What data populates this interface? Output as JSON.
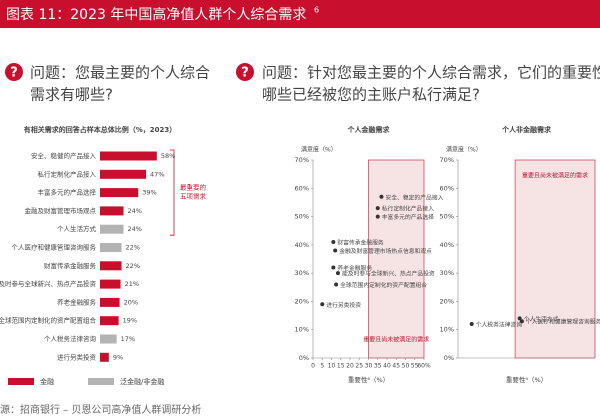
{
  "header": {
    "title": "图表 11：2023 年中国高净值人群个人综合需求",
    "superscript": "6"
  },
  "question_left": [
    "问题：您最主要的个人综合",
    "需求有哪些?"
  ],
  "question_right": [
    "问题：针对您最主要的个人综合需求，它们的重要性如何",
    "哪些已经被您的主账户私行满足?"
  ],
  "chart_data": [
    {
      "type": "bar",
      "title": "有相关需求的回答占样本总体比例（%，2023）",
      "categories": [
        "安全、稳健的产品接入",
        "私行定制化产品接入",
        "丰富多元的产品选择",
        "金融及财富管理市场观点",
        "个人生活方式",
        "个人医疗和健康管理咨询服务",
        "财富传承金融服务",
        "能及时参与全球新兴、热点产品投资",
        "养老金融服务",
        "全球范围内定制化的资产配置组合",
        "个人税务法律咨询",
        "进行另类投资"
      ],
      "values": [
        58,
        47,
        39,
        24,
        24,
        22,
        22,
        21,
        20,
        19,
        17,
        9
      ],
      "value_labels": [
        "58%",
        "47%",
        "39%",
        "24%",
        "24%",
        "22%",
        "22%",
        "21%",
        "20%",
        "19%",
        "17%",
        "9%"
      ],
      "colors": [
        "#c8102e",
        "#c8102e",
        "#c8102e",
        "#c8102e",
        "#b3b3b3",
        "#b3b3b3",
        "#c8102e",
        "#c8102e",
        "#c8102e",
        "#c8102e",
        "#b3b3b3",
        "#c8102e"
      ],
      "legend": [
        {
          "name": "金融",
          "color": "#c8102e"
        },
        {
          "name": "泛金融/非金融",
          "color": "#b3b3b3"
        }
      ],
      "annotation": [
        "最重要的",
        "五项需求"
      ]
    },
    {
      "type": "scatter",
      "title": "个人金融需求",
      "ylabel": "满意度（%）",
      "xlabel": "重要性⁶（%）",
      "x": [
        37,
        35,
        35,
        11,
        12,
        11,
        13.5,
        12.5,
        5
      ],
      "values": [
        57,
        53,
        50,
        41,
        38,
        32,
        30,
        26,
        19
      ],
      "labels": [
        "安全、稳定的产品接入",
        "私行定制化产品接入",
        "丰富多元的产品选择",
        "财富传承金融服务",
        "金融及财富管理市场热点信息和观点",
        "养老金融服务",
        "能及时参与全球新兴、热点产品投资",
        "全球范围内定制化的资产配置组合",
        "进行另类投资"
      ],
      "xlim": [
        0,
        60
      ],
      "ylim": [
        0,
        70
      ],
      "xticks": [
        0,
        5,
        10,
        15,
        20,
        25,
        30,
        35,
        40,
        45,
        50,
        55,
        {
          "value": 60,
          "label": "60%"
        }
      ],
      "yticks": [
        {
          "value": 0,
          "label": "0%"
        },
        {
          "value": 10,
          "label": "10%"
        },
        {
          "value": 20,
          "label": "20%"
        },
        {
          "value": 30,
          "label": "30%"
        },
        {
          "value": 40,
          "label": "40%"
        },
        {
          "value": 50,
          "label": "50%"
        },
        {
          "value": 60,
          "label": "60%"
        },
        {
          "value": 70,
          "label": "70%"
        }
      ],
      "highlight_x": [
        30,
        60
      ],
      "region_label": "重要且尚未被满足的需求",
      "color": "#333333"
    },
    {
      "type": "scatter",
      "title": "个人非金融需求",
      "ylabel": "满意度（%）",
      "xlabel": "重要性⁶（%）",
      "x": [
        6,
        27,
        28
      ],
      "values": [
        12,
        14,
        13
      ],
      "labels": [
        "个人税务法律咨询",
        "个人生活方式",
        "个人医疗和健康管理咨询服务"
      ],
      "xlim": [
        0,
        60
      ],
      "ylim": [
        0,
        70
      ],
      "yticks": [
        {
          "value": 0,
          "label": "0%"
        },
        {
          "value": 10,
          "label": "10%"
        },
        {
          "value": 20,
          "label": "20%"
        },
        {
          "value": 30,
          "label": "30%"
        },
        {
          "value": 40,
          "label": "40%"
        },
        {
          "value": 50,
          "label": "50%"
        },
        {
          "value": 60,
          "label": "60%"
        },
        {
          "value": 70,
          "label": "70%"
        }
      ],
      "highlight_x": [
        25,
        60
      ],
      "region_label": "重要且尚未被满足的需求",
      "color": "#333333"
    }
  ],
  "source": "源：招商银行 – 贝恩公司高净值人群调研分析"
}
